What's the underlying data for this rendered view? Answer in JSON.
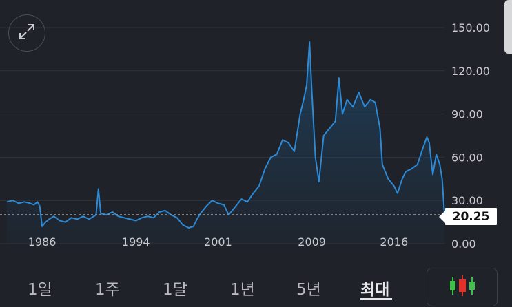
{
  "chart": {
    "expand_icon": "expand-arrows-icon",
    "current_price_label": "20.25",
    "y_ticks": [
      "150.00",
      "120.00",
      "90.00",
      "60.00",
      "30.00",
      "0.00"
    ],
    "x_ticks": [
      "1986",
      "1994",
      "2001",
      "2009",
      "2016"
    ],
    "line_color": "#2d8ad6",
    "grid_color": "#30343b"
  },
  "chart_data": {
    "type": "area",
    "y_axis_ticks": [
      0,
      30,
      60,
      90,
      120,
      150
    ],
    "ylim": [
      0,
      150
    ],
    "xlim": [
      1983.0,
      2020.3
    ],
    "x_tick_years": [
      1986,
      1994,
      2001,
      2009,
      2016
    ],
    "current_value": 20.25,
    "series": [
      {
        "x": [
          1983.0,
          1983.5,
          1984.0,
          1984.5,
          1985.0,
          1985.3,
          1985.6,
          1985.8,
          1986.0,
          1986.3,
          1986.6,
          1987.0,
          1987.5,
          1988.0,
          1988.5,
          1989.0,
          1989.5,
          1990.0,
          1990.6,
          1990.8,
          1991.0,
          1991.5,
          1992.0,
          1992.5,
          1993.0,
          1993.5,
          1994.0,
          1994.5,
          1995.0,
          1995.5,
          1996.0,
          1996.5,
          1997.0,
          1997.5,
          1998.0,
          1998.5,
          1998.9,
          1999.2,
          1999.5,
          2000.0,
          2000.5,
          2001.0,
          2001.5,
          2001.9,
          2002.3,
          2002.7,
          2003.0,
          2003.5,
          2004.0,
          2004.5,
          2005.0,
          2005.5,
          2006.0,
          2006.5,
          2007.0,
          2007.5,
          2008.0,
          2008.3,
          2008.55,
          2008.8,
          2009.0,
          2009.3,
          2009.6,
          2010.0,
          2010.5,
          2011.0,
          2011.3,
          2011.6,
          2012.0,
          2012.5,
          2013.0,
          2013.5,
          2014.0,
          2014.4,
          2014.8,
          2015.0,
          2015.5,
          2016.0,
          2016.3,
          2016.7,
          2017.0,
          2017.5,
          2018.0,
          2018.4,
          2018.8,
          2019.0,
          2019.3,
          2019.6,
          2019.9,
          2020.1,
          2020.3
        ],
        "values": [
          29,
          30,
          28,
          29,
          28,
          27,
          29,
          26,
          12,
          15,
          17,
          19,
          16,
          15,
          18,
          17,
          19,
          17,
          20,
          38,
          21,
          20,
          22,
          19,
          18,
          17,
          16,
          18,
          19,
          18,
          22,
          23,
          20,
          18,
          13,
          11,
          12,
          17,
          21,
          26,
          30,
          28,
          27,
          20,
          24,
          28,
          31,
          29,
          35,
          40,
          52,
          60,
          62,
          72,
          70,
          64,
          90,
          100,
          110,
          140,
          105,
          60,
          43,
          75,
          80,
          85,
          115,
          90,
          100,
          95,
          105,
          95,
          100,
          98,
          80,
          55,
          45,
          40,
          35,
          45,
          50,
          52,
          55,
          65,
          74,
          70,
          48,
          62,
          55,
          45,
          20.25
        ]
      }
    ]
  },
  "range_tabs": [
    {
      "label": "1일"
    },
    {
      "label": "1주"
    },
    {
      "label": "1달"
    },
    {
      "label": "1년"
    },
    {
      "label": "5년"
    },
    {
      "label": "최대"
    }
  ],
  "candle_icon": "candlestick-chart-icon"
}
